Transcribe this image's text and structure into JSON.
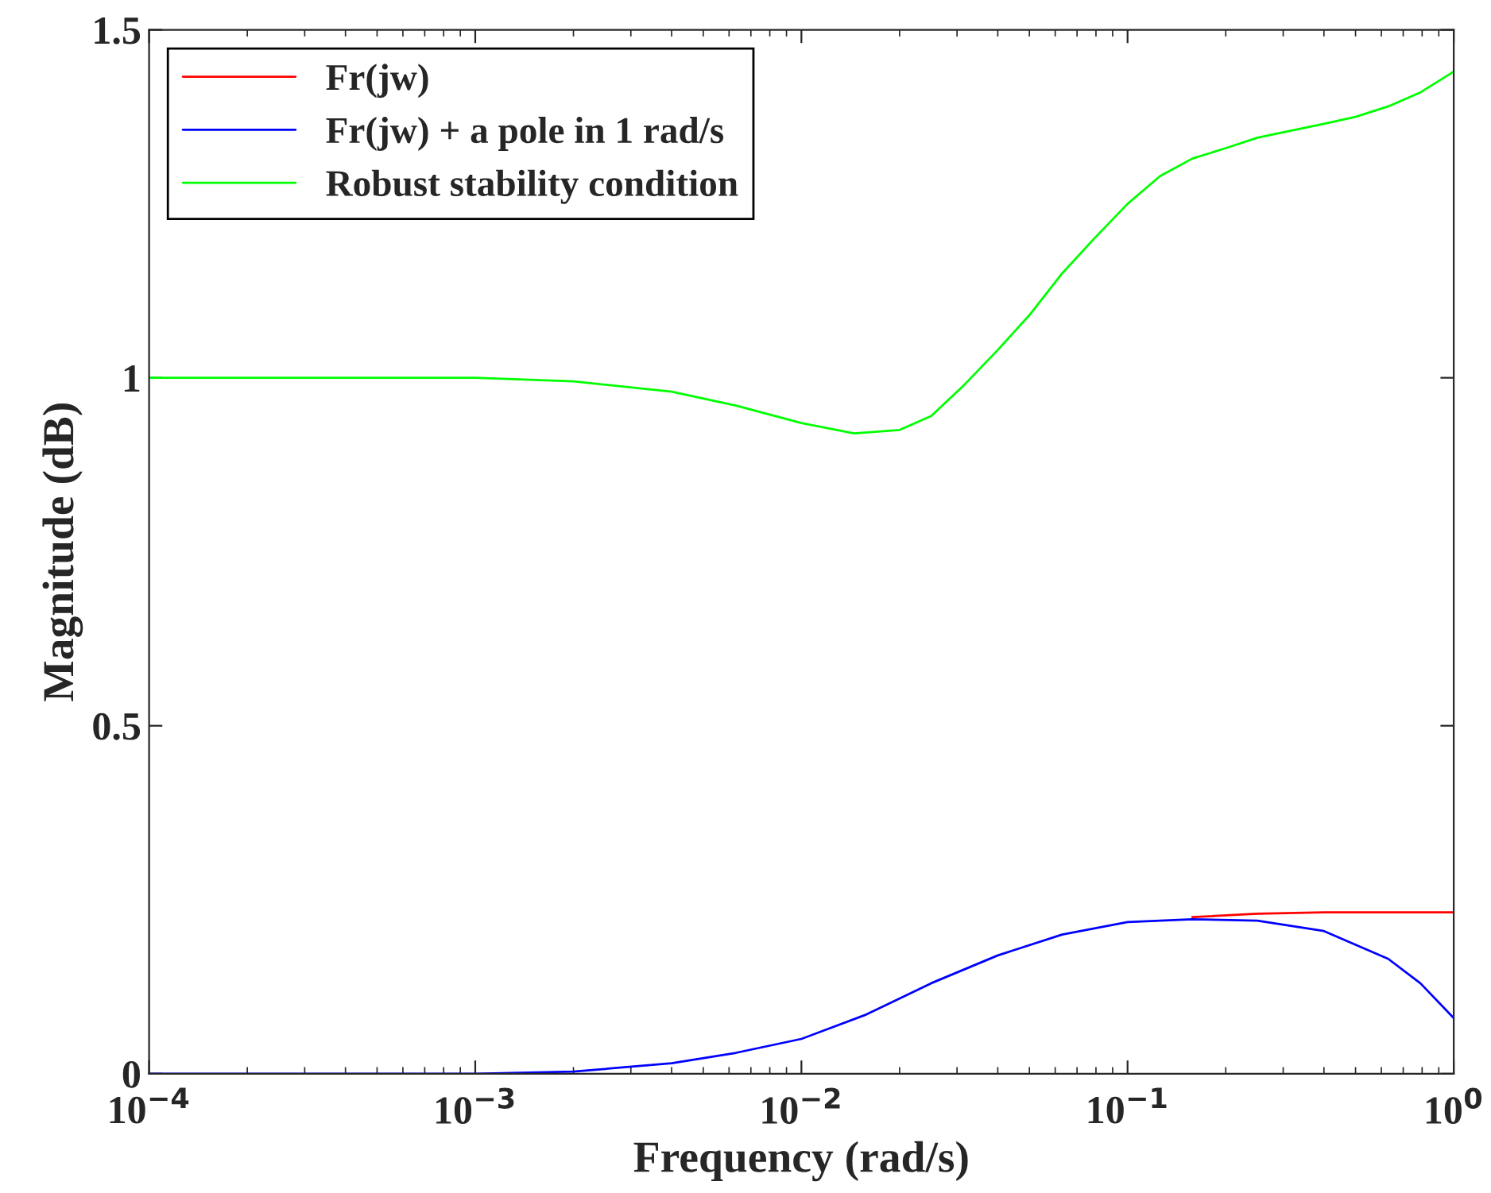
{
  "chart_data": {
    "type": "line",
    "xlabel": "Frequency (rad/s)",
    "ylabel": "Magnitude (dB)",
    "log": "x",
    "xlim": [
      0.0001,
      1
    ],
    "ylim": [
      0,
      1.5
    ],
    "xticks": [
      {
        "value": 0.0001,
        "label": "10$^{−4}$"
      },
      {
        "value": 0.001,
        "label": "10$^{−3}$"
      },
      {
        "value": 0.01,
        "label": "10$^{−2}$"
      },
      {
        "value": 0.1,
        "label": "10$^{−1}$"
      },
      {
        "value": 1,
        "label": "10$^{0}$"
      }
    ],
    "yticks": [
      0,
      0.5,
      1,
      1.5
    ],
    "grid": false,
    "legend": "top left",
    "line_style": "solid",
    "marker": "none",
    "series": [
      {
        "name": "Fr(jw)",
        "color": "#ff0000",
        "x": [
          0.158,
          0.25,
          0.4,
          1
        ],
        "values": [
          0.225,
          0.23,
          0.232,
          0.232
        ]
      },
      {
        "name": "Fr(jw) + a pole in 1 rad/s",
        "color": "#0000ff",
        "x": [
          0.0001,
          0.001,
          0.002,
          0.004,
          0.0063,
          0.01,
          0.0158,
          0.025,
          0.04,
          0.063,
          0.1,
          0.158,
          0.25,
          0.4,
          0.63,
          0.79,
          1
        ],
        "values": [
          0,
          0,
          0.003,
          0.015,
          0.03,
          0.05,
          0.085,
          0.13,
          0.17,
          0.2,
          0.218,
          0.222,
          0.22,
          0.205,
          0.165,
          0.13,
          0.08
        ]
      },
      {
        "name": "Robust stability condition",
        "color": "#00ff00",
        "x": [
          0.0001,
          0.000316,
          0.001,
          0.002,
          0.004,
          0.0063,
          0.01,
          0.0145,
          0.02,
          0.025,
          0.0316,
          0.04,
          0.05,
          0.063,
          0.079,
          0.1,
          0.126,
          0.158,
          0.2,
          0.25,
          0.316,
          0.4,
          0.5,
          0.63,
          0.79,
          1
        ],
        "values": [
          1,
          1,
          1,
          0.995,
          0.98,
          0.96,
          0.935,
          0.92,
          0.925,
          0.945,
          0.99,
          1.04,
          1.09,
          1.15,
          1.2,
          1.25,
          1.29,
          1.315,
          1.33,
          1.345,
          1.355,
          1.365,
          1.375,
          1.39,
          1.41,
          1.44
        ]
      }
    ]
  }
}
